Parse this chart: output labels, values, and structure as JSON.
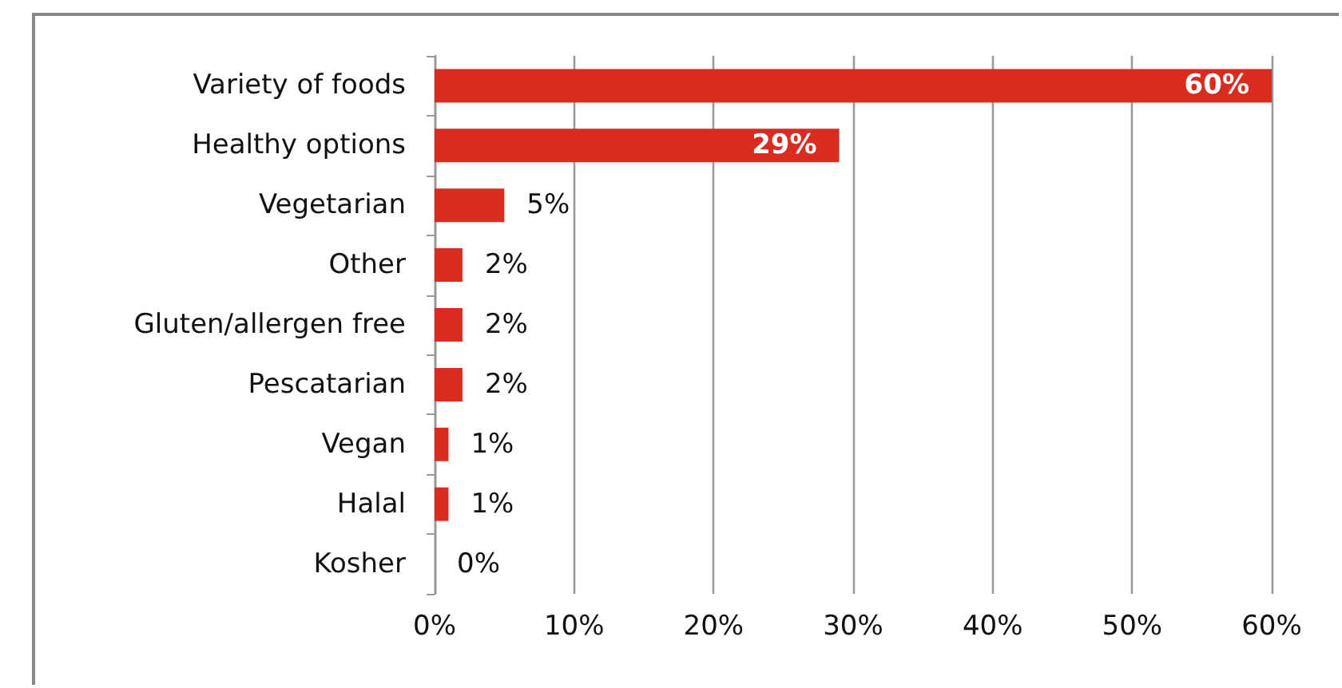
{
  "chart_data": {
    "type": "bar",
    "orientation": "horizontal",
    "categories": [
      "Variety of foods",
      "Healthy options",
      "Vegetarian",
      "Other",
      "Gluten/allergen free",
      "Pescatarian",
      "Vegan",
      "Halal",
      "Kosher"
    ],
    "values": [
      60,
      29,
      5,
      2,
      2,
      2,
      1,
      1,
      0
    ],
    "value_labels": [
      "60%",
      "29%",
      "5%",
      "2%",
      "2%",
      "2%",
      "1%",
      "1%",
      "0%"
    ],
    "color": "#d92b1f",
    "xlim": [
      0,
      60
    ],
    "xticks": [
      {
        "value": 0,
        "label": "0%"
      },
      {
        "value": 10,
        "label": "10%"
      },
      {
        "value": 20,
        "label": "20%"
      },
      {
        "value": 30,
        "label": "30%"
      },
      {
        "value": 40,
        "label": "40%"
      },
      {
        "value": 50,
        "label": "50%"
      },
      {
        "value": 60,
        "label": "60%"
      }
    ],
    "grid": "x"
  }
}
